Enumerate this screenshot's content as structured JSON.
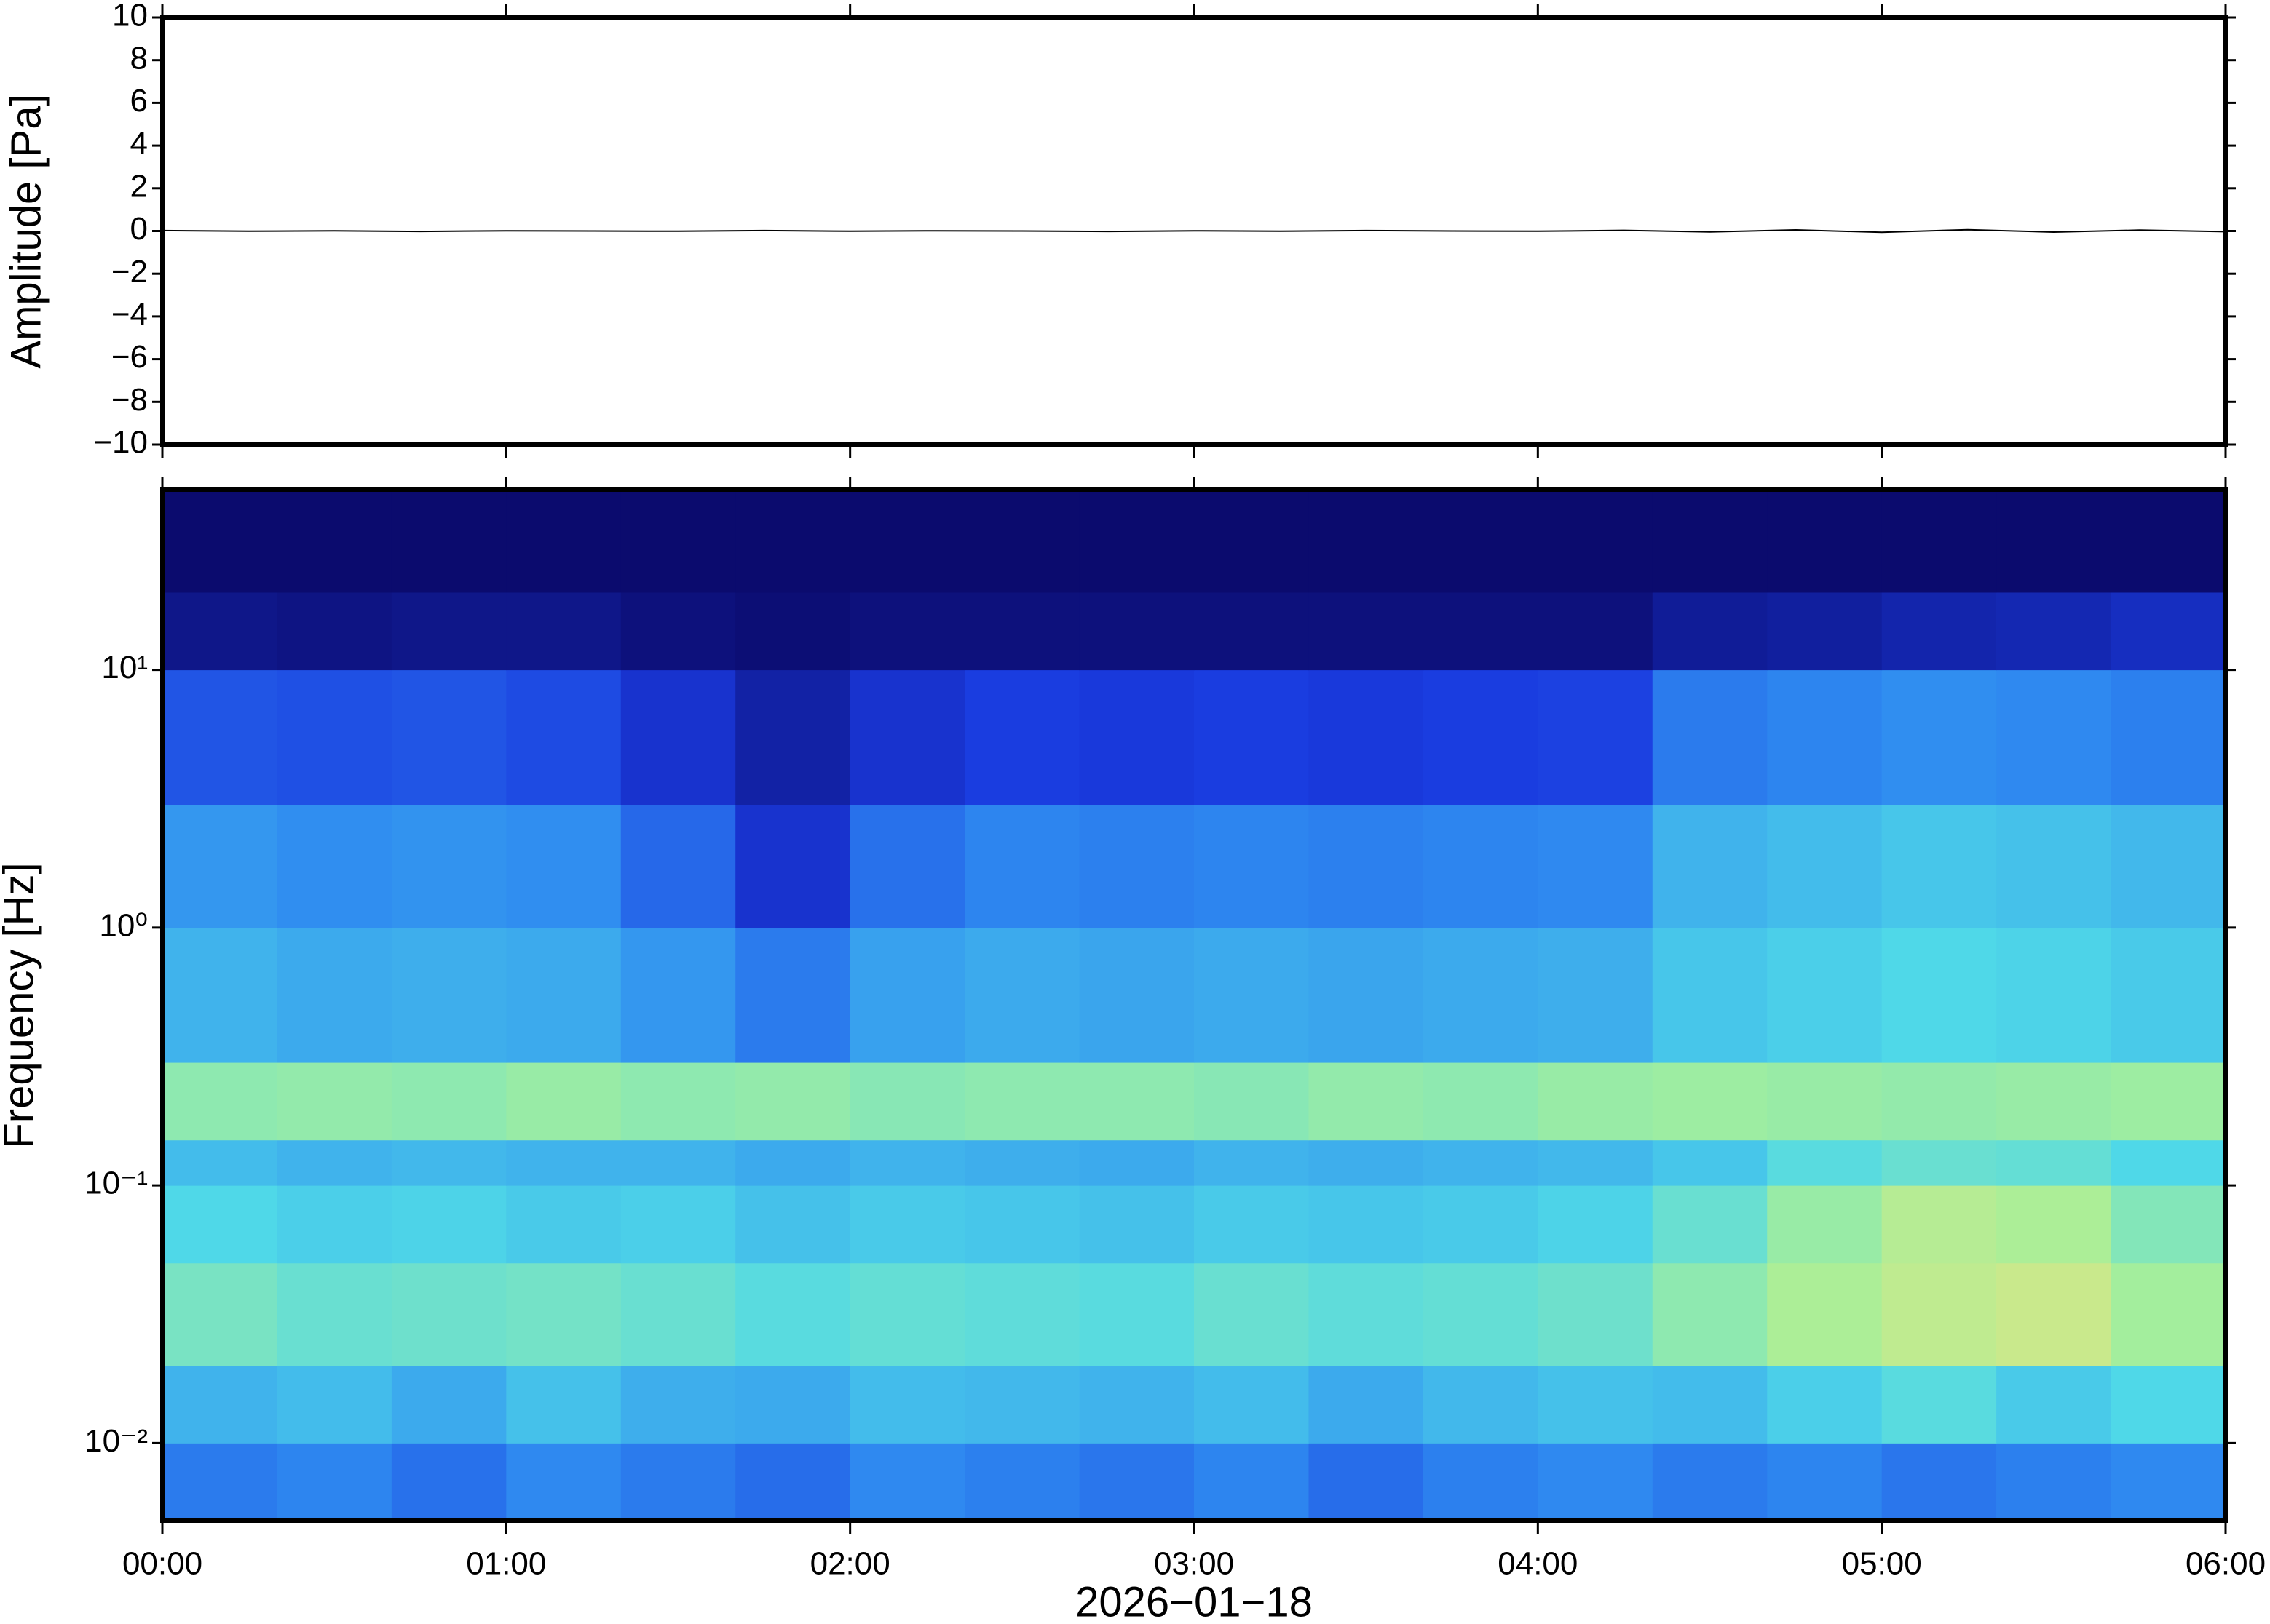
{
  "chart_data": [
    {
      "type": "line",
      "ylabel": "Amplitude [Pa]",
      "color": "#000000",
      "x": [
        0,
        15,
        30,
        45,
        60,
        75,
        90,
        105,
        120,
        135,
        150,
        165,
        180,
        195,
        210,
        225,
        240,
        255,
        270,
        285,
        300,
        315,
        330,
        345,
        360
      ],
      "values": [
        0.02,
        -0.01,
        0.01,
        -0.02,
        0.01,
        0.0,
        -0.01,
        0.02,
        -0.01,
        0.01,
        0.0,
        -0.02,
        0.01,
        -0.01,
        0.02,
        0.0,
        -0.01,
        0.03,
        -0.04,
        0.05,
        -0.06,
        0.06,
        -0.05,
        0.04,
        -0.03
      ],
      "xlim": [
        0,
        360
      ],
      "ylim": [
        -10,
        10
      ],
      "yticks": [
        {
          "value": -10,
          "label": "−10"
        },
        {
          "value": -8,
          "label": "−8"
        },
        {
          "value": -6,
          "label": "−6"
        },
        {
          "value": -4,
          "label": "−4"
        },
        {
          "value": -2,
          "label": "−2"
        },
        0,
        2,
        4,
        6,
        8,
        10
      ]
    },
    {
      "type": "heatmap",
      "ylabel": "Frequency [Hz]",
      "xlabel": "2026−01−18",
      "log_y": true,
      "x_bins": [
        0,
        20,
        40,
        60,
        80,
        100,
        120,
        140,
        160,
        180,
        200,
        220,
        240,
        260,
        280,
        300,
        320,
        340,
        360
      ],
      "y_bins": [
        0.005,
        0.01,
        0.02,
        0.05,
        0.1,
        0.15,
        0.3,
        1,
        3,
        10,
        20,
        50
      ],
      "values": [
        [
          0.3,
          0.32,
          0.28,
          0.33,
          0.3,
          0.27,
          0.33,
          0.31,
          0.29,
          0.32,
          0.27,
          0.31,
          0.33,
          0.3,
          0.32,
          0.29,
          0.31,
          0.33
        ],
        [
          0.42,
          0.44,
          0.4,
          0.45,
          0.41,
          0.4,
          0.44,
          0.43,
          0.42,
          0.44,
          0.4,
          0.43,
          0.45,
          0.44,
          0.48,
          0.52,
          0.47,
          0.5
        ],
        [
          0.58,
          0.55,
          0.56,
          0.57,
          0.55,
          0.52,
          0.54,
          0.53,
          0.52,
          0.55,
          0.53,
          0.54,
          0.56,
          0.62,
          0.68,
          0.72,
          0.74,
          0.66
        ],
        [
          0.5,
          0.48,
          0.49,
          0.47,
          0.48,
          0.45,
          0.47,
          0.46,
          0.45,
          0.47,
          0.46,
          0.47,
          0.49,
          0.55,
          0.64,
          0.7,
          0.68,
          0.6
        ],
        [
          0.44,
          0.42,
          0.43,
          0.42,
          0.42,
          0.4,
          0.42,
          0.41,
          0.4,
          0.42,
          0.41,
          0.42,
          0.43,
          0.46,
          0.52,
          0.55,
          0.54,
          0.5
        ],
        [
          0.62,
          0.63,
          0.62,
          0.64,
          0.62,
          0.63,
          0.61,
          0.62,
          0.62,
          0.61,
          0.63,
          0.62,
          0.64,
          0.65,
          0.64,
          0.63,
          0.64,
          0.65
        ],
        [
          0.42,
          0.4,
          0.41,
          0.4,
          0.36,
          0.3,
          0.38,
          0.4,
          0.39,
          0.4,
          0.39,
          0.4,
          0.41,
          0.46,
          0.48,
          0.5,
          0.49,
          0.47
        ],
        [
          0.36,
          0.34,
          0.35,
          0.34,
          0.26,
          0.14,
          0.28,
          0.32,
          0.31,
          0.32,
          0.31,
          0.32,
          0.33,
          0.42,
          0.44,
          0.46,
          0.45,
          0.43
        ],
        [
          0.22,
          0.21,
          0.22,
          0.2,
          0.14,
          0.08,
          0.14,
          0.17,
          0.16,
          0.17,
          0.16,
          0.17,
          0.18,
          0.3,
          0.32,
          0.34,
          0.33,
          0.31
        ],
        [
          0.04,
          0.03,
          0.04,
          0.04,
          0.02,
          0.01,
          0.02,
          0.02,
          0.02,
          0.02,
          0.02,
          0.02,
          0.02,
          0.06,
          0.07,
          0.09,
          0.1,
          0.12
        ],
        [
          0,
          0,
          0,
          0,
          0,
          0,
          0,
          0,
          0,
          0,
          0,
          0,
          0,
          0,
          0,
          0,
          0,
          0
        ]
      ],
      "clim": [
        0,
        1
      ],
      "colormap": [
        "#0b0b6e",
        "#1a3be0",
        "#2f8bf0",
        "#4fd8e8",
        "#a6ef9a",
        "#f5e27a",
        "#f07a3a"
      ],
      "xlim": [
        0,
        360
      ],
      "ylim": [
        0.005,
        50
      ],
      "xticks": [
        {
          "value": 0,
          "label": "00:00"
        },
        {
          "value": 60,
          "label": "01:00"
        },
        {
          "value": 120,
          "label": "02:00"
        },
        {
          "value": 180,
          "label": "03:00"
        },
        {
          "value": 240,
          "label": "04:00"
        },
        {
          "value": 300,
          "label": "05:00"
        },
        {
          "value": 360,
          "label": "06:00"
        }
      ],
      "yticks": [
        {
          "value": 0.01,
          "label": "10⁻²"
        },
        {
          "value": 0.1,
          "label": "10⁻¹"
        },
        {
          "value": 1,
          "label": "10⁰"
        },
        {
          "value": 10,
          "label": "10¹"
        }
      ]
    }
  ]
}
